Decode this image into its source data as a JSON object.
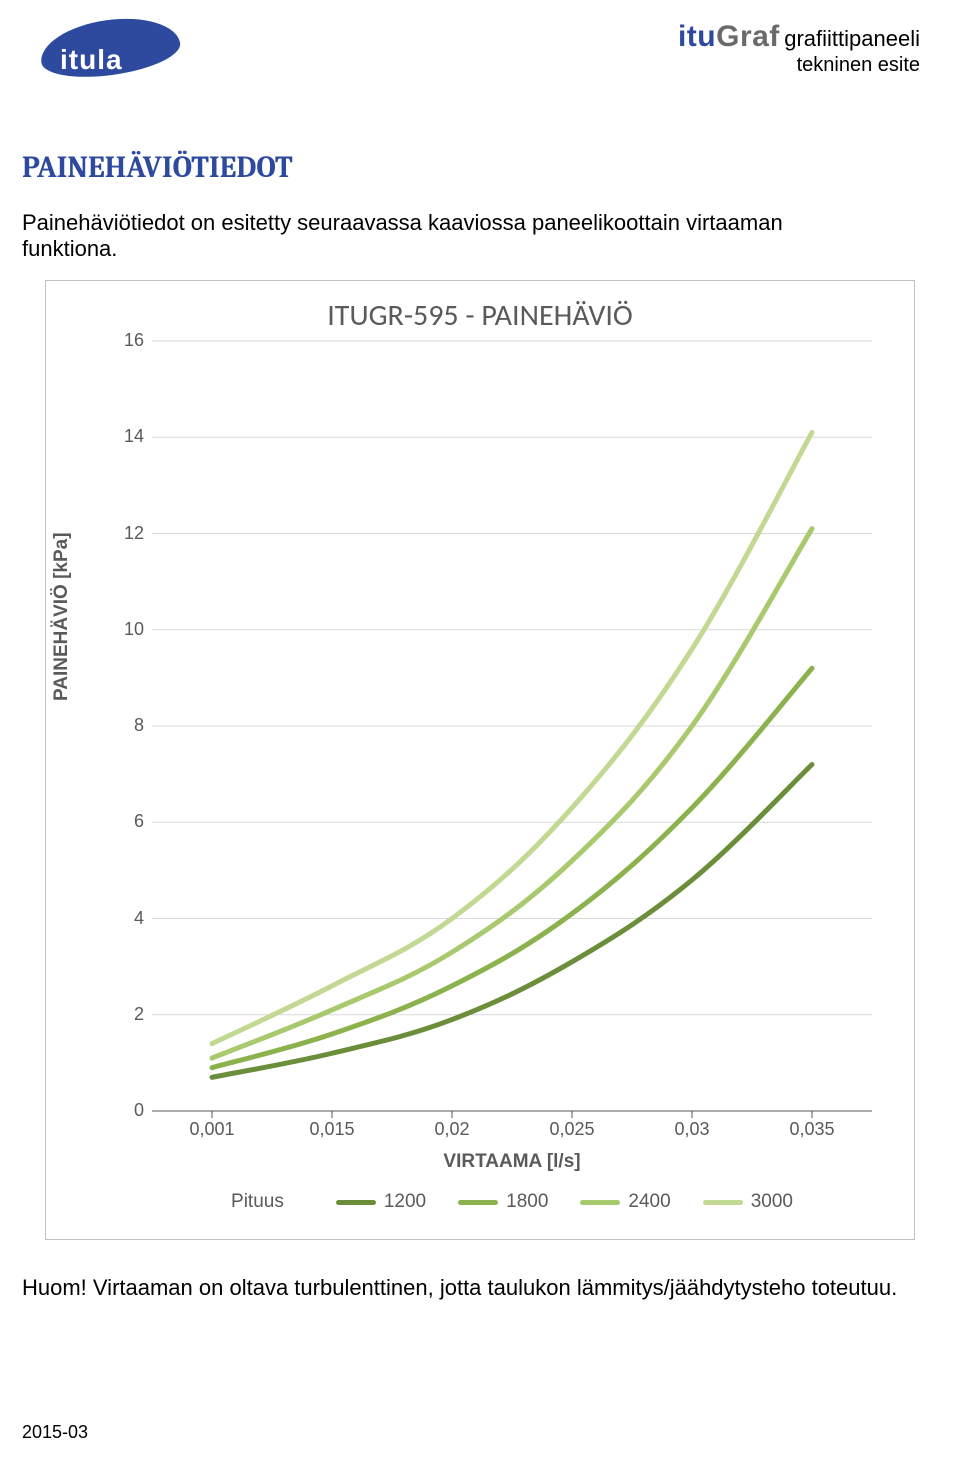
{
  "logo_left_text": "itula",
  "logo_right": {
    "brand_itu": "itu",
    "brand_graf": "Graf",
    "sub1": "grafiittipaneeli",
    "sub2": "tekninen esite"
  },
  "page_title": "PAINEHÄVIÖTIEDOT",
  "intro": "Painehäviötiedot on esitetty seuraavassa kaaviossa paneelikoottain virtaaman funktiona.",
  "note": "Huom! Virtaaman on oltava turbulenttinen, jotta taulukon lämmitys/jäähdytysteho toteutuu.",
  "footer_date": "2015-03",
  "chart": {
    "type": "line",
    "title": "ITUGR-595 -  PAINEHÄVIÖ",
    "y_axis_label": "PAINEHÄVIÖ [kPa]",
    "x_axis_label": "VIRTAAMA [l/s]",
    "title_fontsize": 30,
    "label_fontsize": 19,
    "tick_fontsize": 18,
    "plot_bg": "#ffffff",
    "border_color": "#c0c0c0",
    "grid_color": "#d9d9d9",
    "tick_color": "#5a5a5a",
    "line_width": 5,
    "ylim": [
      0,
      16
    ],
    "ytick_step": 2,
    "x_values": [
      0.001,
      0.015,
      0.02,
      0.025,
      0.03,
      0.035
    ],
    "x_tick_labels": [
      "0,001",
      "0,015",
      "0,02",
      "0,025",
      "0,03",
      "0,035"
    ],
    "legend_title": "Pituus",
    "series": [
      {
        "name": "1200",
        "color": "#6b8e3a",
        "y": [
          0.7,
          1.2,
          1.9,
          3.1,
          4.8,
          7.2
        ]
      },
      {
        "name": "1800",
        "color": "#8cb24e",
        "y": [
          0.9,
          1.6,
          2.6,
          4.1,
          6.3,
          9.2
        ]
      },
      {
        "name": "2400",
        "color": "#a8c96d",
        "y": [
          1.1,
          2.1,
          3.3,
          5.2,
          8.0,
          12.1
        ]
      },
      {
        "name": "3000",
        "color": "#c1d992",
        "y": [
          1.4,
          2.6,
          4.0,
          6.3,
          9.6,
          14.1
        ]
      }
    ]
  }
}
